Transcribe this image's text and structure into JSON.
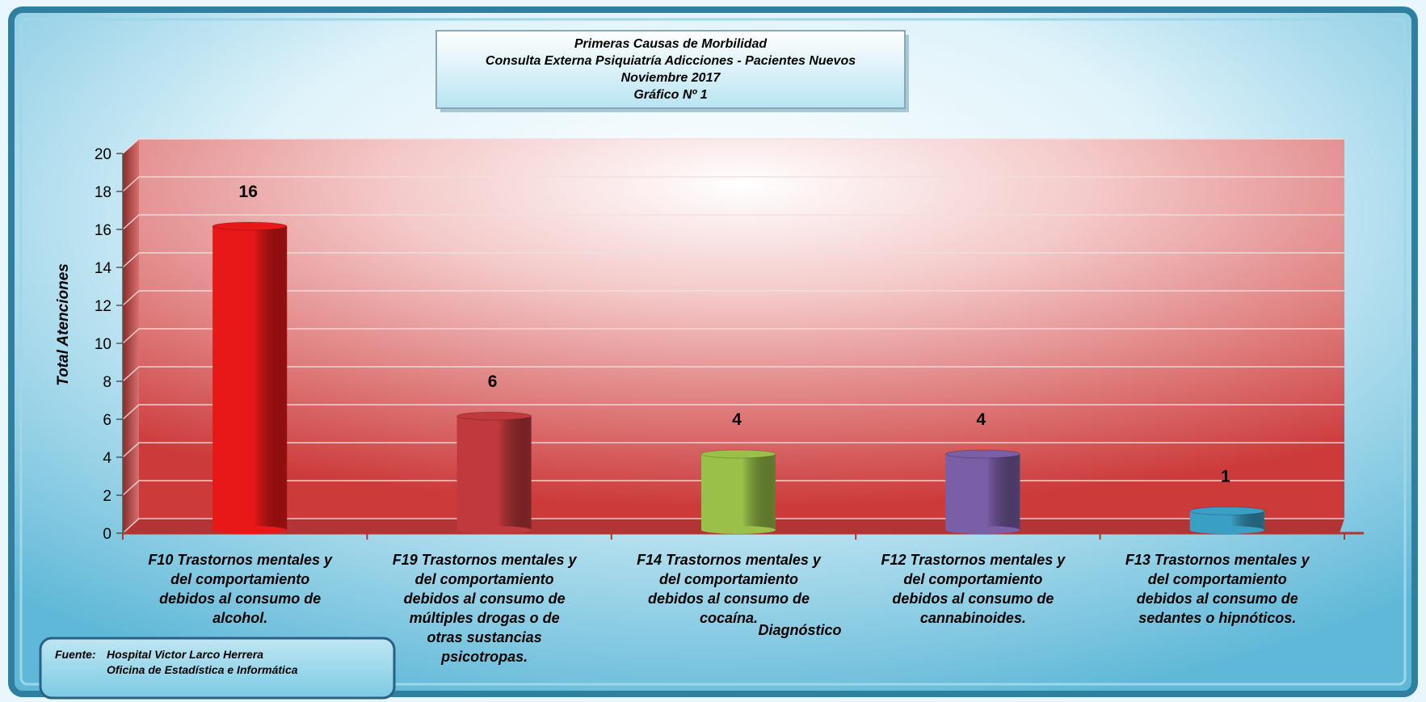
{
  "chart_data": {
    "type": "bar",
    "title_lines": [
      "Primeras Causas de Morbilidad",
      "Consulta Externa Psiquiatría Adicciones - Pacientes Nuevos",
      "Noviembre 2017",
      "Gráfico Nº 1"
    ],
    "xlabel": "Diagnóstico",
    "ylabel": "Total Atenciones",
    "ylim": [
      0,
      20
    ],
    "yticks": [
      0,
      2,
      4,
      6,
      8,
      10,
      12,
      14,
      16,
      18,
      20
    ],
    "grid": true,
    "data_labels": true,
    "categories": [
      [
        "F10 Trastornos mentales y",
        "del comportamiento",
        "debidos al consumo de",
        "alcohol."
      ],
      [
        "F19 Trastornos mentales y",
        "del comportamiento",
        "debidos al consumo de",
        "múltiples drogas o de",
        "otras sustancias",
        "psicotropas."
      ],
      [
        "F14 Trastornos mentales y",
        "del comportamiento",
        "debidos al consumo de",
        "cocaína."
      ],
      [
        "F12 Trastornos mentales y",
        "del comportamiento",
        "debidos al consumo de",
        "cannabinoides."
      ],
      [
        "F13 Trastornos mentales y",
        "del comportamiento",
        "debidos al consumo de",
        "sedantes o hipnóticos."
      ]
    ],
    "values": [
      16,
      6,
      4,
      4,
      1
    ],
    "bar_colors": [
      "#e81818",
      "#c0393c",
      "#9bc04a",
      "#7a5ea6",
      "#3a9fc4"
    ]
  },
  "source": {
    "label": "Fuente:",
    "line1": "Hospital Victor Larco Herrera",
    "line2": "Oficina de Estadística e Informática"
  }
}
